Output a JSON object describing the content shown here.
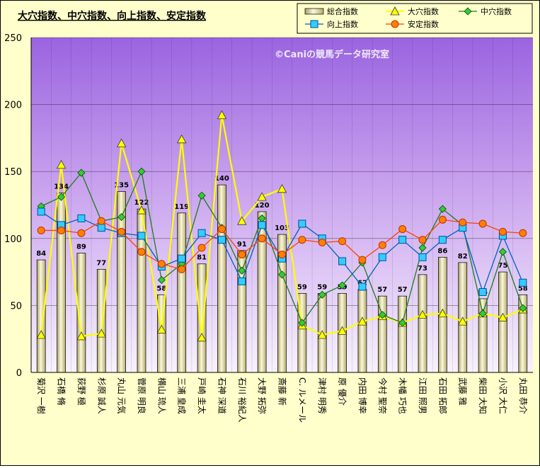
{
  "chart_data": {
    "type": "bar",
    "title": "大穴指数、中穴指数、向上指数、安定指数",
    "watermark": "©Caniの競馬データ研究室",
    "ylim": [
      0,
      250
    ],
    "yticks": [
      0,
      50,
      100,
      150,
      200,
      250
    ],
    "categories": [
      "菊沢 一樹",
      "石橋 脩",
      "荻野 極",
      "杉原 誠人",
      "丸山 元気",
      "菅原 明良",
      "横山 琉人",
      "三浦 皇成",
      "戸崎 圭太",
      "石神 深道",
      "石川 裕紀人",
      "大野 拓弥",
      "斎藤 新",
      "C. ルメール",
      "津村 明秀",
      "原 優介",
      "内田 博幸",
      "今村 聖奈",
      "木幡 巧也",
      "江田 照男",
      "石田 拓郎",
      "武藤 雅",
      "柴田 大知",
      "小沢 大仁",
      "丸田 恭介"
    ],
    "series": [
      {
        "name": "総合指数",
        "kind": "bar",
        "color": "#f3efc4",
        "values": [
          84,
          134,
          89,
          77,
          135,
          122,
          58,
          119,
          81,
          140,
          91,
          120,
          103,
          59,
          59,
          59,
          62,
          57,
          57,
          73,
          86,
          82,
          55,
          75,
          58
        ]
      },
      {
        "name": "大穴指数",
        "kind": "line",
        "color": "#ffff00",
        "marker": "triangle",
        "values": [
          28,
          155,
          27,
          29,
          171,
          121,
          32,
          174,
          26,
          192,
          113,
          131,
          137,
          35,
          28,
          31,
          38,
          42,
          37,
          43,
          44,
          38,
          44,
          41,
          47
        ]
      },
      {
        "name": "中穴指数",
        "kind": "line",
        "color": "#1f7a1f",
        "marker": "diamond",
        "values": [
          124,
          131,
          149,
          113,
          116,
          150,
          69,
          81,
          132,
          108,
          76,
          115,
          73,
          37,
          58,
          65,
          82,
          43,
          37,
          93,
          122,
          110,
          44,
          90,
          48
        ]
      },
      {
        "name": "向上指数",
        "kind": "line",
        "color": "#0060c0",
        "marker": "square",
        "values": [
          120,
          110,
          115,
          108,
          104,
          102,
          79,
          85,
          104,
          99,
          68,
          110,
          85,
          111,
          100,
          83,
          64,
          86,
          99,
          86,
          99,
          108,
          60,
          102,
          67
        ]
      },
      {
        "name": "安定指数",
        "kind": "line",
        "color": "#ff4000",
        "marker": "circle",
        "values": [
          106,
          106,
          104,
          113,
          105,
          90,
          81,
          77,
          93,
          107,
          88,
          100,
          88,
          99,
          97,
          98,
          84,
          95,
          107,
          99,
          114,
          112,
          111,
          105,
          104
        ]
      }
    ],
    "legend_position": "top-right"
  }
}
